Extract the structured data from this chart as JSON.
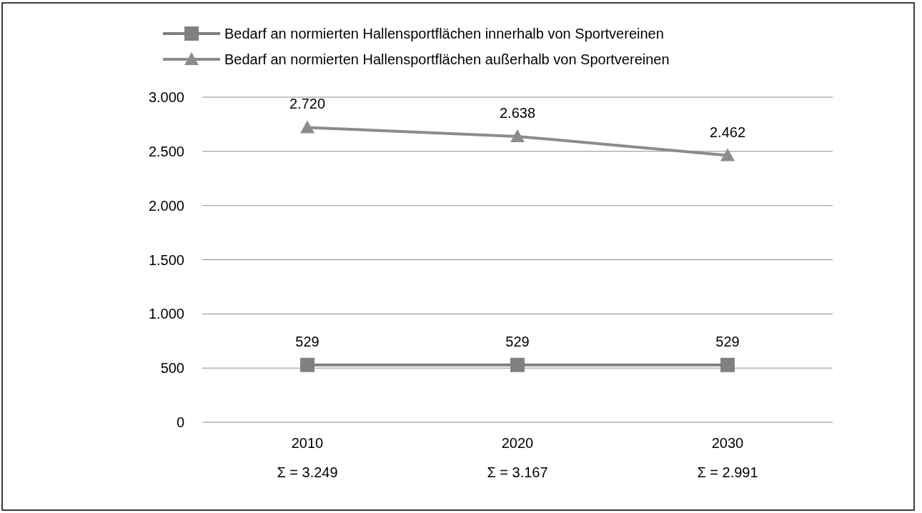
{
  "chart_data": {
    "type": "line",
    "categories": [
      "2010",
      "2020",
      "2030"
    ],
    "series": [
      {
        "name": "Bedarf an normierten Hallensportflächen innerhalb von Sportvereinen",
        "color": "#808080",
        "values": [
          529,
          529,
          529
        ],
        "marker": "square",
        "value_labels": [
          "529",
          "529",
          "529"
        ]
      },
      {
        "name": "Bedarf an normierten Hallensportflächen außerhalb von Sportvereinen",
        "color": "#8c8c8c",
        "values": [
          2720,
          2638,
          2462
        ],
        "marker": "triangle",
        "value_labels": [
          "2.720",
          "2.638",
          "2.462"
        ]
      }
    ],
    "ylim": [
      0,
      3000
    ],
    "yticks": [
      {
        "value": 0,
        "label": "0"
      },
      {
        "value": 500,
        "label": "500"
      },
      {
        "value": 1000,
        "label": "1.000"
      },
      {
        "value": 1500,
        "label": "1.500"
      },
      {
        "value": 2000,
        "label": "2.000"
      },
      {
        "value": 2500,
        "label": "2.500"
      },
      {
        "value": 3000,
        "label": "3.000"
      }
    ],
    "grid": "y",
    "legend": "top",
    "annotations": [
      "Σ = 3.249",
      "Σ = 3.167",
      "Σ = 2.991"
    ]
  }
}
